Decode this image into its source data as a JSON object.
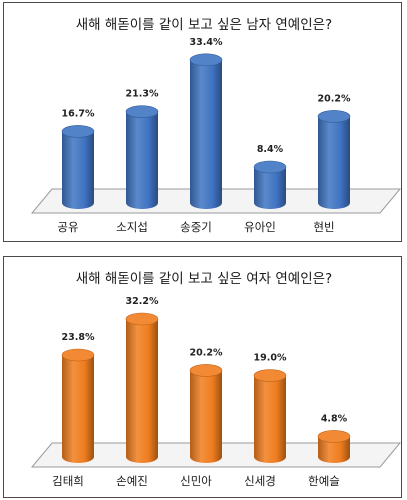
{
  "chart_data": [
    {
      "type": "bar",
      "title": "새해 해돋이를 같이 보고 싶은 남자 연예인은?",
      "categories": [
        "공유",
        "소지섭",
        "송중기",
        "유아인",
        "현빈"
      ],
      "values": [
        16.7,
        21.3,
        33.4,
        8.4,
        20.2
      ],
      "value_labels": [
        "16.7%",
        "21.3%",
        "33.4%",
        "8.4%",
        "20.2%"
      ],
      "color": "#3f74c2",
      "ylim": [
        0,
        35
      ],
      "grid": false,
      "legend": "none",
      "style": "3d-cylinder"
    },
    {
      "type": "bar",
      "title": "새해 해돋이를 같이 보고 싶은 여자 연예인은?",
      "categories": [
        "김태희",
        "손예진",
        "신민아",
        "신세경",
        "한예슬"
      ],
      "values": [
        23.8,
        32.2,
        20.2,
        19.0,
        4.8
      ],
      "value_labels": [
        "23.8%",
        "32.2%",
        "20.2%",
        "19.0%",
        "4.8%"
      ],
      "color": "#f07d1e",
      "ylim": [
        0,
        35
      ],
      "grid": false,
      "legend": "none",
      "style": "3d-cylinder"
    }
  ]
}
